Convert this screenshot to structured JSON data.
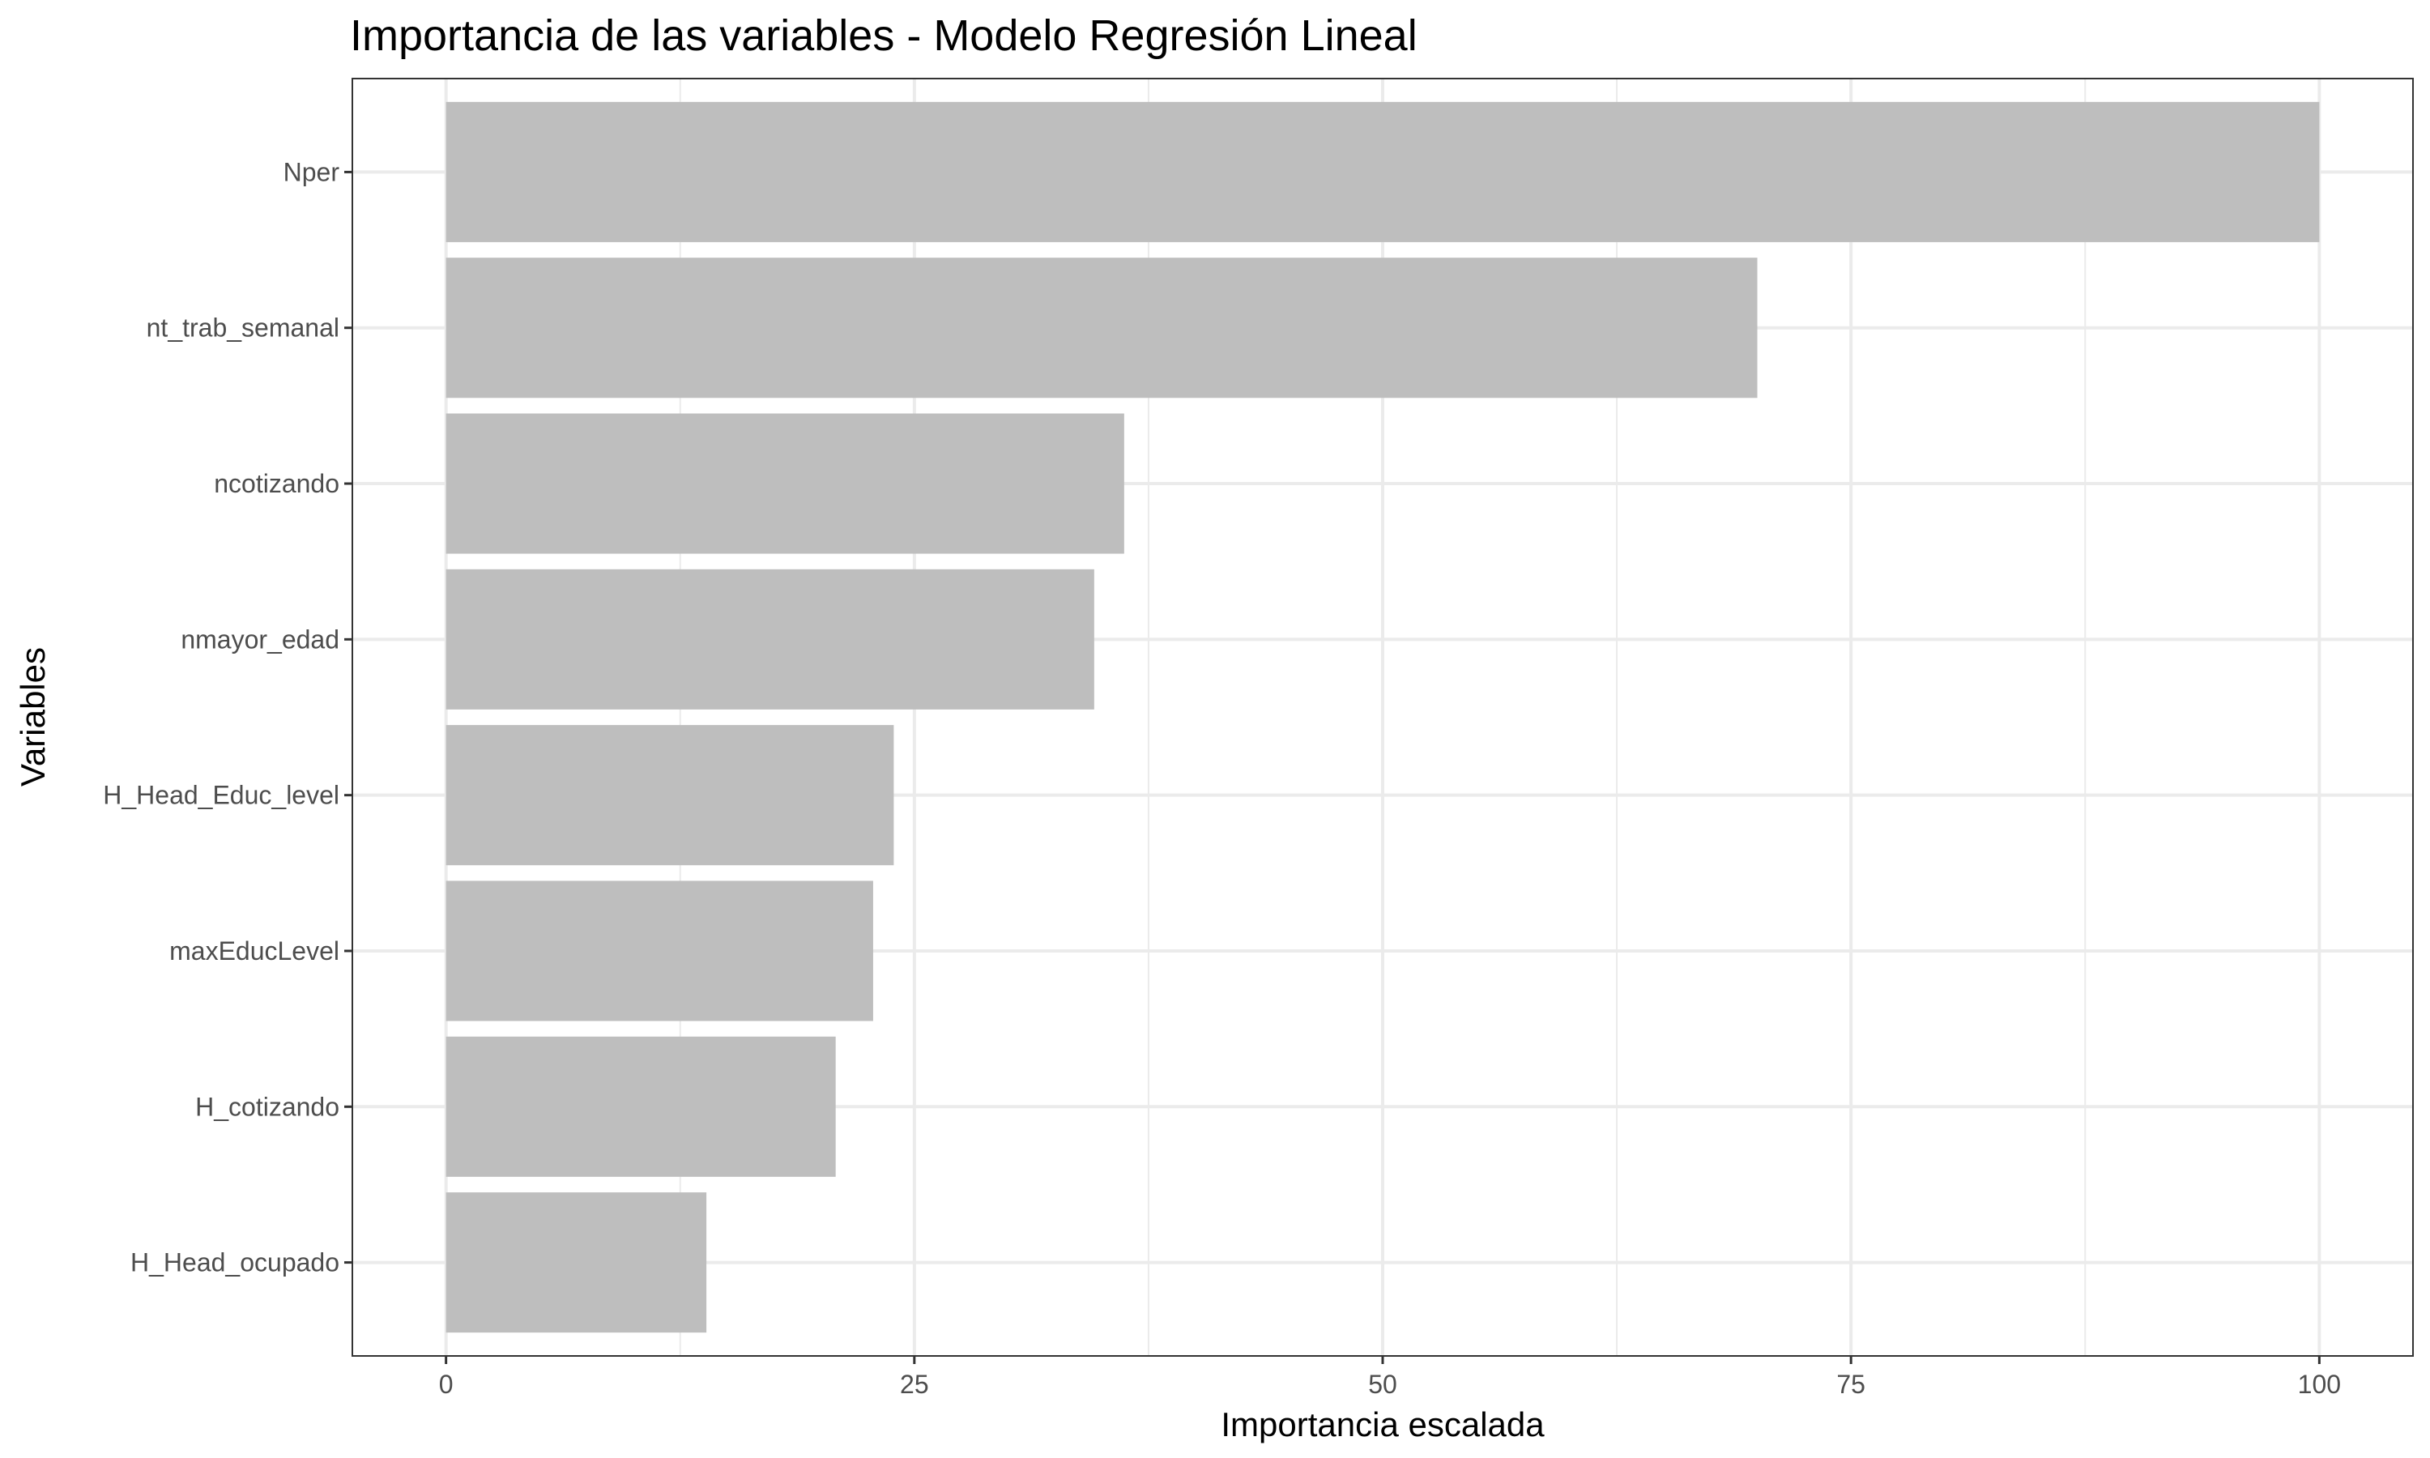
{
  "chart_data": {
    "type": "bar",
    "orientation": "horizontal",
    "title": "Importancia de las variables - Modelo Regresión Lineal",
    "xlabel": "Importancia escalada",
    "ylabel": "Variables",
    "categories": [
      "Nper",
      "nt_trab_semanal",
      "ncotizando",
      "nmayor_edad",
      "H_Head_Educ_level",
      "maxEducLevel",
      "H_cotizando",
      "H_Head_ocupado"
    ],
    "values": [
      100,
      70,
      36.2,
      34.6,
      23.9,
      22.8,
      20.8,
      13.9
    ],
    "xticks": [
      "0",
      "25",
      "50",
      "75",
      "100"
    ],
    "xlim": [
      -5,
      105
    ],
    "grid": true,
    "legend": "none",
    "colors": {
      "bar": "#bebebe",
      "grid": "#ebebeb",
      "panel_border": "#333333",
      "tick": "#333333"
    }
  }
}
